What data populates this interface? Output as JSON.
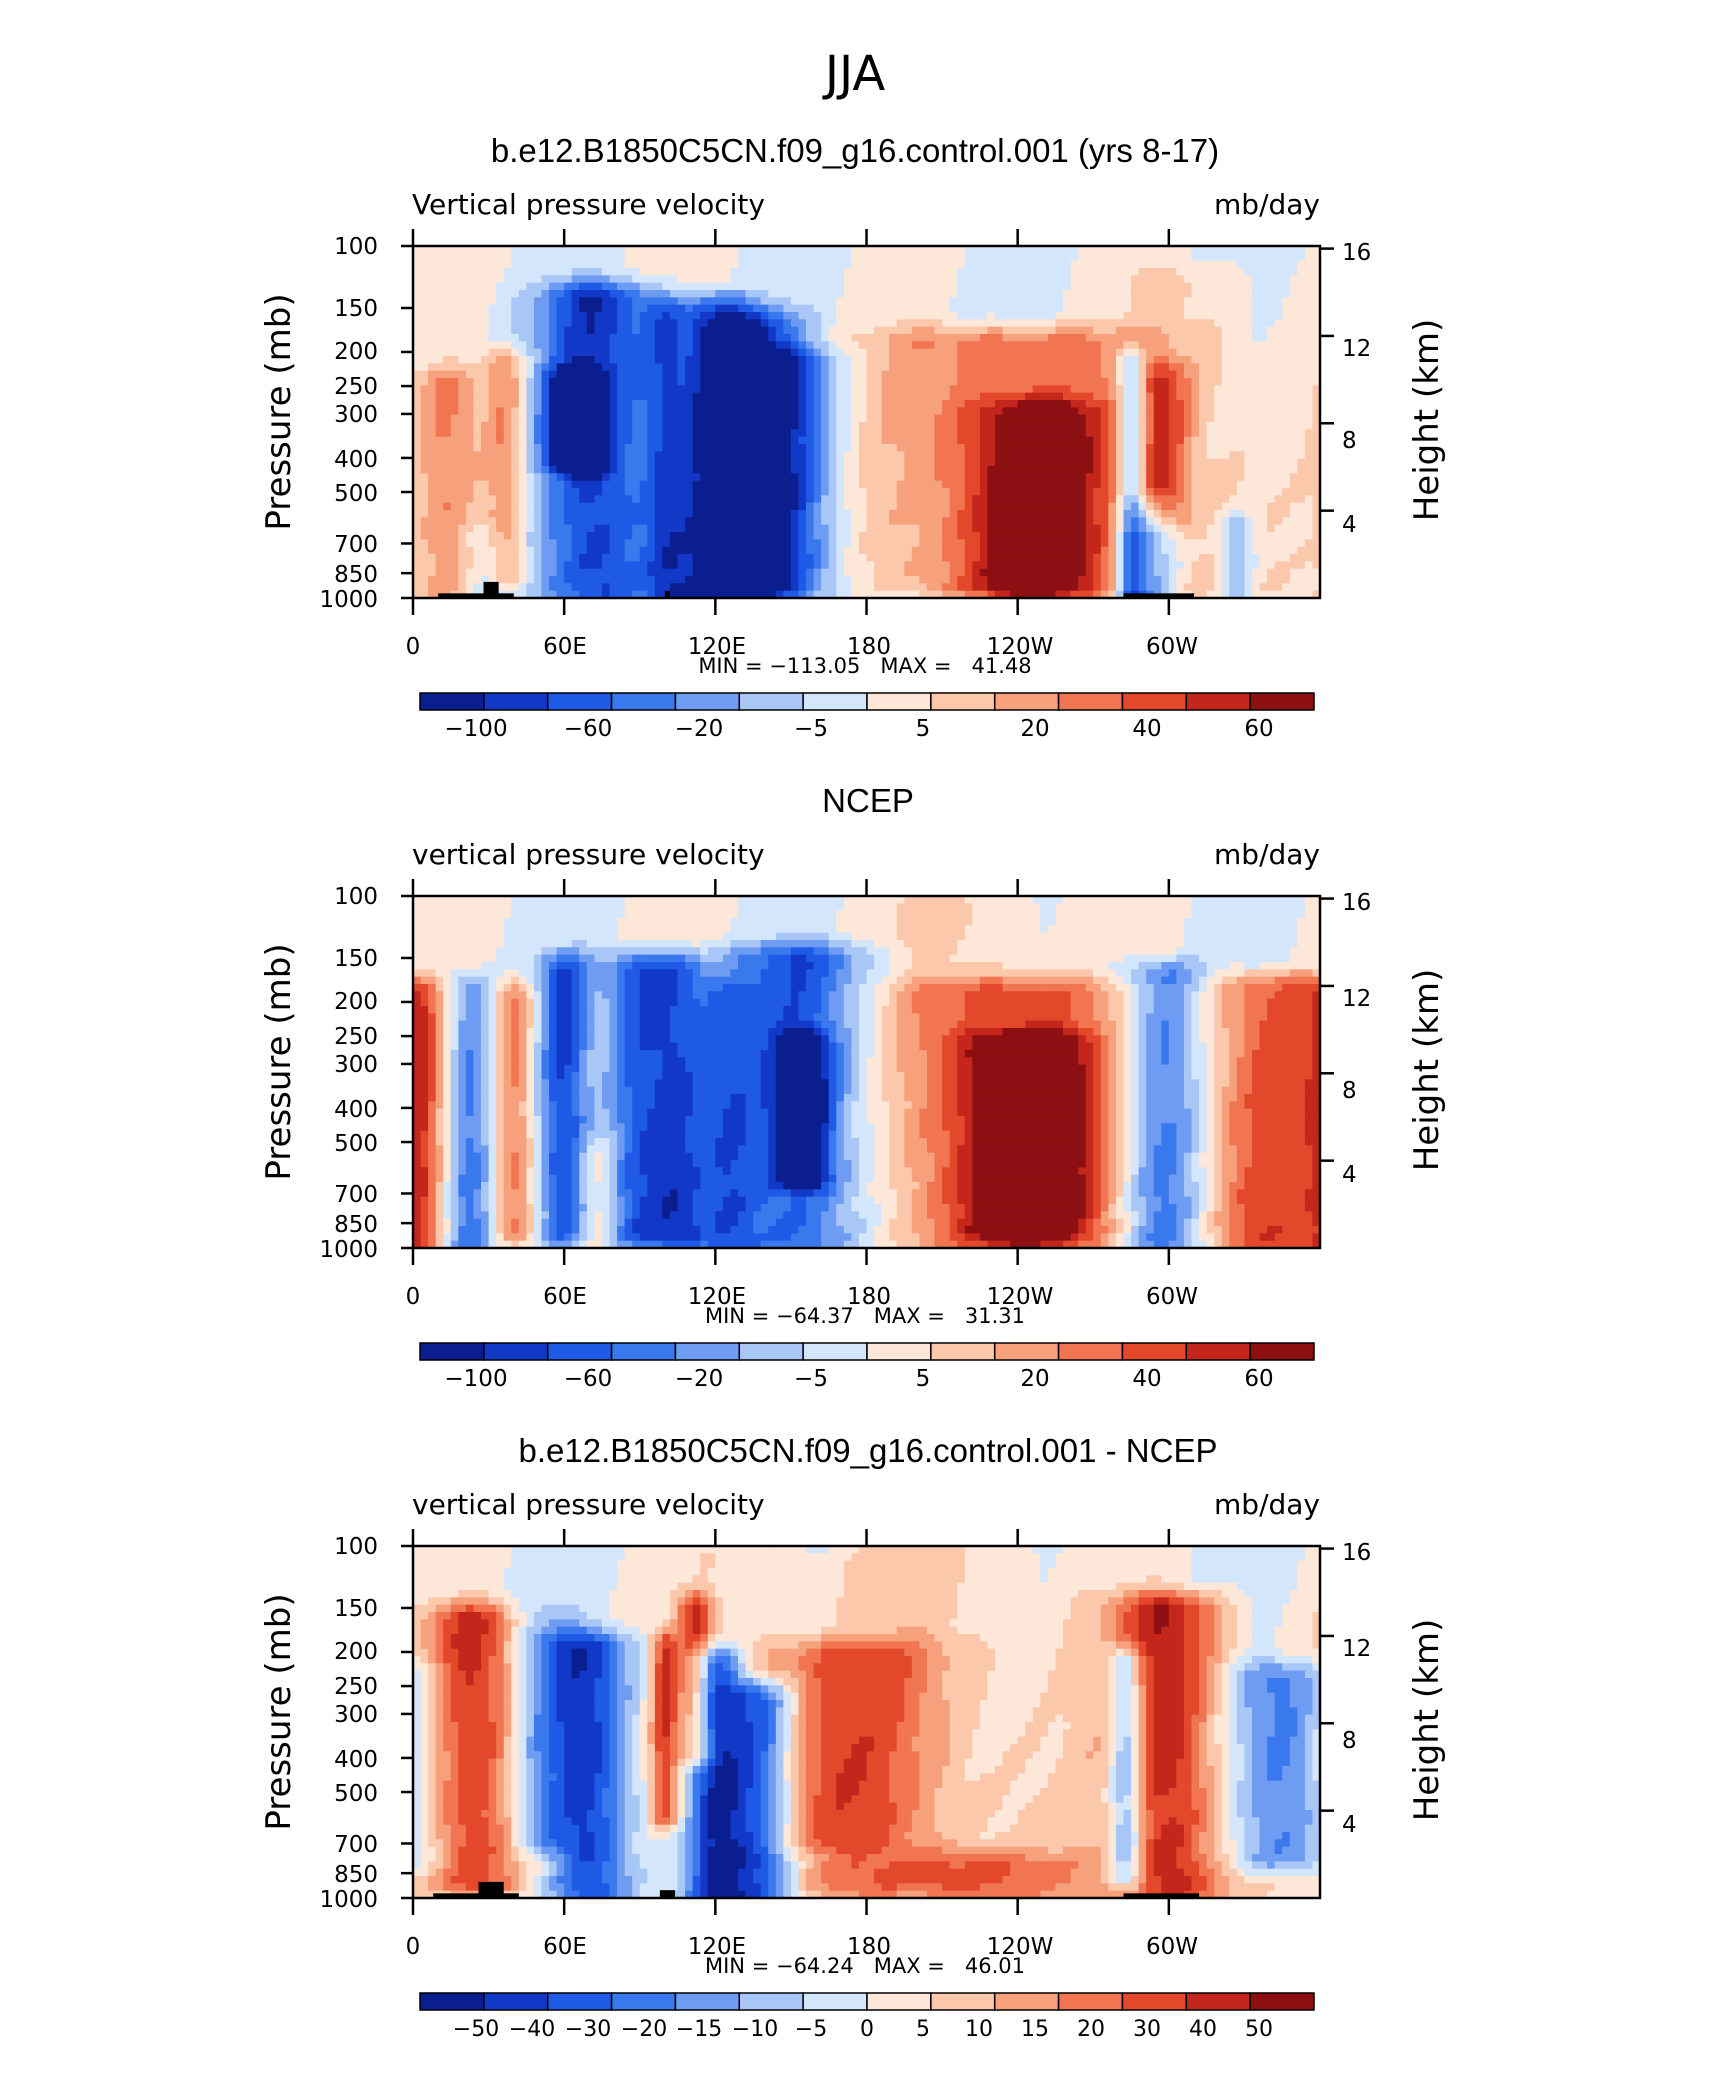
{
  "figure_title": "JJA",
  "colors": {
    "neg": [
      "#0a1e8f",
      "#1238c8",
      "#1e5ae6",
      "#3a78ee",
      "#6e9cf2",
      "#a8c6f6",
      "#d4e6fb"
    ],
    "pos": [
      "#fde7d8",
      "#fbc8ac",
      "#f6a07c",
      "#f07550",
      "#e4482a",
      "#c4261c",
      "#8c0f12"
    ],
    "land": "#000000"
  },
  "chart_data": [
    {
      "type": "heatmap",
      "title": "b.e12.B1850C5CN.f09_g16.control.001 (yrs 8-17)",
      "left_label": "Vertical pressure velocity",
      "right_label": "mb/day",
      "ylabel": "Pressure (mb)",
      "ylabel_right": "Height (km)",
      "xticks": [
        "0",
        "60E",
        "120E",
        "180",
        "120W",
        "60W"
      ],
      "yticks": [
        "100",
        "150",
        "200",
        "250",
        "300",
        "400",
        "500",
        "700",
        "850",
        "1000"
      ],
      "height_ticks": [
        "16",
        "12",
        "8",
        "4"
      ],
      "stats": "MIN = −113.05   MAX =   41.48",
      "colorbar_labels": [
        "−100",
        "−60",
        "−20",
        "−5",
        "5",
        "20",
        "40",
        "60"
      ],
      "features": [
        {
          "lon": 15,
          "w": 10,
          "v": 2.8,
          "top": 230,
          "bot": 1000
        },
        {
          "lon": 37,
          "w": 6,
          "v": 3.4,
          "top": 200,
          "bot": 900
        },
        {
          "lon": 30,
          "w": 7,
          "v": -1.5,
          "top": 650,
          "bot": 1000
        },
        {
          "lon": 73,
          "w": 16,
          "v": -5.6,
          "top": 130,
          "bot": 1000
        },
        {
          "lon": 64,
          "w": 7,
          "v": -6.6,
          "top": 230,
          "bot": 420
        },
        {
          "lon": 100,
          "w": 6,
          "v": -2.5,
          "top": 150,
          "bot": 1000
        },
        {
          "lon": 120,
          "w": 14,
          "v": -4.8,
          "top": 140,
          "bot": 1000
        },
        {
          "lon": 135,
          "w": 14,
          "v": -4.6,
          "top": 160,
          "bot": 1000
        },
        {
          "lon": 152,
          "w": 14,
          "v": -3.6,
          "top": 200,
          "bot": 950
        },
        {
          "lon": 238,
          "w": 38,
          "v": 3.9,
          "top": 175,
          "bot": 950
        },
        {
          "lon": 248,
          "w": 18,
          "v": 4.5,
          "top": 280,
          "bot": 970
        },
        {
          "lon": 285,
          "w": 4,
          "v": -4.5,
          "top": 200,
          "bot": 1000
        },
        {
          "lon": 298,
          "w": 7,
          "v": 3.4,
          "top": 220,
          "bot": 600
        },
        {
          "lon": 293,
          "w": 8,
          "v": -3.6,
          "top": 550,
          "bot": 1000
        },
        {
          "lon": 327,
          "w": 5,
          "v": -3,
          "top": 600,
          "bot": 1000
        },
        {
          "lon": 310,
          "w": 20,
          "v": 1.2,
          "top": 120,
          "bot": 1000
        }
      ],
      "land": [
        {
          "lon": [
            10,
            40
          ],
          "p": 970
        },
        {
          "lon": [
            28,
            34
          ],
          "p": 900
        },
        {
          "lon": [
            100,
            102
          ],
          "p": 955
        },
        {
          "lon": [
            282,
            310
          ],
          "p": 970
        }
      ]
    },
    {
      "type": "heatmap",
      "title": "NCEP",
      "left_label": "vertical pressure velocity",
      "right_label": "mb/day",
      "ylabel": "Pressure (mb)",
      "ylabel_right": "Height (km)",
      "xticks": [
        "0",
        "60E",
        "120E",
        "180",
        "120W",
        "60W"
      ],
      "yticks": [
        "100",
        "150",
        "200",
        "250",
        "300",
        "400",
        "500",
        "700",
        "850",
        "1000"
      ],
      "height_ticks": [
        "16",
        "12",
        "8",
        "4"
      ],
      "stats": "MIN = −64.37   MAX =   31.31",
      "colorbar_labels": [
        "−100",
        "−60",
        "−20",
        "−5",
        "5",
        "20",
        "40",
        "60"
      ],
      "features": [
        {
          "lon": 3,
          "w": 6,
          "v": 2.7,
          "top": 180,
          "bot": 1000
        },
        {
          "lon": 22,
          "w": 7,
          "v": -3.7,
          "top": 170,
          "bot": 1000
        },
        {
          "lon": 40,
          "w": 6,
          "v": 3.6,
          "top": 180,
          "bot": 920
        },
        {
          "lon": 60,
          "w": 7,
          "v": -4.8,
          "top": 150,
          "bot": 950
        },
        {
          "lon": 73,
          "w": 5,
          "v": 1.4,
          "top": 500,
          "bot": 1000
        },
        {
          "lon": 88,
          "w": 9,
          "v": -4.2,
          "top": 150,
          "bot": 950
        },
        {
          "lon": 105,
          "w": 9,
          "v": -4.4,
          "top": 150,
          "bot": 950
        },
        {
          "lon": 125,
          "w": 7,
          "v": -2.2,
          "top": 180,
          "bot": 1000
        },
        {
          "lon": 153,
          "w": 22,
          "v": -4.6,
          "top": 140,
          "bot": 1000
        },
        {
          "lon": 155,
          "w": 7,
          "v": -5.5,
          "top": 250,
          "bot": 650
        },
        {
          "lon": 242,
          "w": 36,
          "v": 3.9,
          "top": 175,
          "bot": 1000
        },
        {
          "lon": 245,
          "w": 18,
          "v": 4.6,
          "top": 250,
          "bot": 900
        },
        {
          "lon": 298,
          "w": 13,
          "v": -4.7,
          "top": 160,
          "bot": 1000
        },
        {
          "lon": 340,
          "w": 22,
          "v": 4.2,
          "top": 170,
          "bot": 1000
        },
        {
          "lon": 220,
          "w": 30,
          "v": 1.2,
          "top": 100,
          "bot": 1000
        }
      ],
      "land": []
    },
    {
      "type": "heatmap",
      "title": "b.e12.B1850C5CN.f09_g16.control.001 - NCEP",
      "left_label": "vertical pressure velocity",
      "right_label": "mb/day",
      "ylabel": "Pressure (mb)",
      "ylabel_right": "Height (km)",
      "xticks": [
        "0",
        "60E",
        "120E",
        "180",
        "120W",
        "60W"
      ],
      "yticks": [
        "100",
        "150",
        "200",
        "250",
        "300",
        "400",
        "500",
        "700",
        "850",
        "1000"
      ],
      "height_ticks": [
        "16",
        "12",
        "8",
        "4"
      ],
      "stats": "MIN = −64.24   MAX =   46.01",
      "colorbar_labels": [
        "−50",
        "−40",
        "−30",
        "−20",
        "−15",
        "−10",
        "−5",
        "0",
        "5",
        "10",
        "15",
        "20",
        "30",
        "40",
        "50"
      ],
      "features": [
        {
          "lon": 25,
          "w": 14,
          "v": 5.2,
          "top": 150,
          "bot": 950
        },
        {
          "lon": 70,
          "w": 12,
          "v": -5.4,
          "top": 180,
          "bot": 1000
        },
        {
          "lon": 50,
          "w": 10,
          "v": -2.2,
          "top": 150,
          "bot": 700
        },
        {
          "lon": 100,
          "w": 4,
          "v": 4.5,
          "top": 180,
          "bot": 600
        },
        {
          "lon": 112,
          "w": 5,
          "v": 4.2,
          "top": 140,
          "bot": 400
        },
        {
          "lon": 120,
          "w": 8,
          "v": -5.8,
          "top": 200,
          "bot": 1000
        },
        {
          "lon": 138,
          "w": 10,
          "v": -5.6,
          "top": 250,
          "bot": 1000
        },
        {
          "lon": 170,
          "w": 28,
          "v": 3.4,
          "top": 190,
          "bot": 700
        },
        {
          "lon": 210,
          "w": 40,
          "v": 3.8,
          "top": 760,
          "bot": 990
        },
        {
          "lon": 300,
          "w": 16,
          "v": 5.6,
          "top": 140,
          "bot": 1000
        },
        {
          "lon": 283,
          "w": 5,
          "v": -4.8,
          "top": 200,
          "bot": 900
        },
        {
          "lon": 345,
          "w": 16,
          "v": -3.6,
          "top": 220,
          "bot": 800
        },
        {
          "lon": 200,
          "w": 50,
          "v": 1.2,
          "top": 100,
          "bot": 900
        }
      ],
      "land": [
        {
          "lon": [
            8,
            42
          ],
          "p": 970
        },
        {
          "lon": [
            26,
            36
          ],
          "p": 900
        },
        {
          "lon": [
            98,
            104
          ],
          "p": 950
        },
        {
          "lon": [
            282,
            312
          ],
          "p": 970
        }
      ]
    }
  ]
}
